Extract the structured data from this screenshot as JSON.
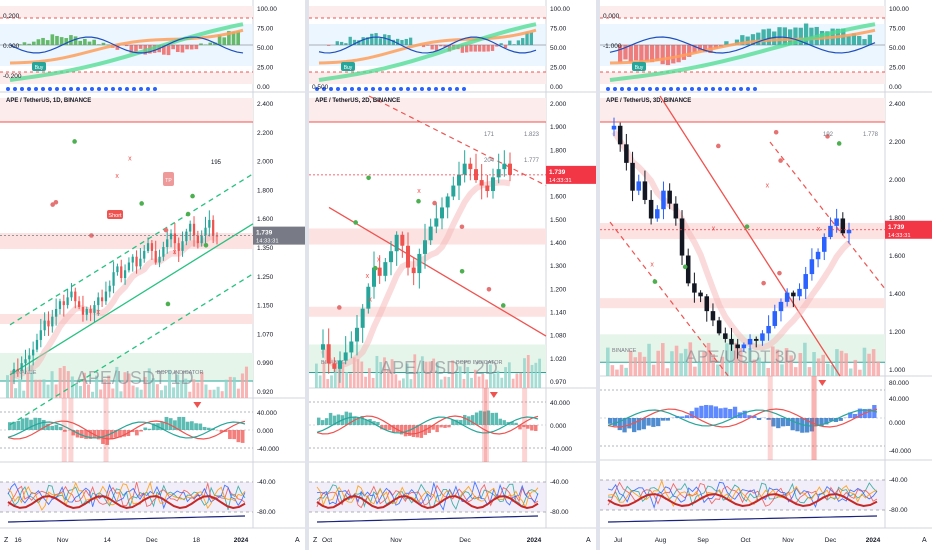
{
  "panels": [
    {
      "symbol_label": "APE / TetherUS, 1D, BINANCE",
      "watermark": "APE/USDT 1D",
      "source_tag": "BINANCE",
      "indicator_tag": "BCPD INDICATOR",
      "last_price": "1.739",
      "countdown": "14:33:31",
      "price_ticks": [
        "2.400",
        "2.200",
        "2.000",
        "1.800",
        "1.600",
        "1.350",
        "1.250",
        "1.150",
        "1.070",
        "0.990",
        "0.920"
      ],
      "osc1_ticks": [
        "0.200",
        "0.000",
        "-0.200"
      ],
      "osc1_right_ticks": [
        "100.00",
        "75.00",
        "50.00",
        "25.00",
        "0.00"
      ],
      "osc2_ticks": [
        "40.000",
        "0.000",
        "-40.000"
      ],
      "osc3_ticks": [
        "-40.00",
        "-80.00"
      ],
      "time_labels": [
        "16",
        "Nov",
        "14",
        "Dec",
        "18",
        "2024"
      ],
      "corner_labels": {
        "left": "Z",
        "right": "A"
      },
      "signal_labels": [
        "Short",
        "TP",
        "Buy"
      ],
      "level_labels": [
        "195",
        "1.800"
      ],
      "price_line_style": "gray"
    },
    {
      "symbol_label": "APE / TetherUS, 2D, BINANCE",
      "watermark": "APE/USDT 2D",
      "source_tag": "BINANCE",
      "indicator_tag": "BCPD INDICATOR",
      "last_price": "1.739",
      "countdown": "14:33:31",
      "price_ticks": [
        "2.000",
        "1.900",
        "1.800",
        "1.700",
        "1.600",
        "1.500",
        "1.400",
        "1.300",
        "1.200",
        "1.140",
        "1.080",
        "1.020",
        "0.970"
      ],
      "osc1_ticks": [
        "0.500"
      ],
      "osc1_right_ticks": [
        "100.00",
        "75.00",
        "50.00",
        "25.00",
        "0.00"
      ],
      "osc2_ticks": [
        "40.000",
        "0.000",
        "-40.000"
      ],
      "osc3_ticks": [
        "-40.00",
        "-80.00"
      ],
      "time_labels": [
        "Oct",
        "Nov",
        "Dec",
        "2024"
      ],
      "corner_labels": {
        "left": "Z",
        "right": "A"
      },
      "signal_labels": [
        "Buy"
      ],
      "level_labels": [
        "171",
        "1.823",
        "204",
        "1.777"
      ],
      "price_line_style": "red"
    },
    {
      "symbol_label": "APE / TetherUS, 3D, BINANCE",
      "watermark": "APE/USDT 3D",
      "source_tag": "BINANCE",
      "indicator_tag": "",
      "last_price": "1.739",
      "countdown": "14:33:31",
      "price_ticks": [
        "2.400",
        "2.200",
        "2.000",
        "1.800",
        "1.600",
        "1.400",
        "1.200",
        "1.000"
      ],
      "osc1_ticks": [
        "0.000",
        "-1.000"
      ],
      "osc1_right_ticks": [
        "100.00",
        "75.00",
        "50.00",
        "25.00",
        "0.00"
      ],
      "osc2_ticks": [
        "80.000",
        "40.000",
        "0.000",
        "-40.000"
      ],
      "osc3_ticks": [
        "-40.00",
        "-80.00"
      ],
      "time_labels": [
        "Jul",
        "Aug",
        "Sep",
        "Oct",
        "Nov",
        "Dec",
        "2024"
      ],
      "corner_labels": {
        "left": "",
        "right": "A"
      },
      "signal_labels": [
        "Buy"
      ],
      "level_labels": [
        "192",
        "1.778"
      ],
      "price_line_style": "red"
    }
  ],
  "chart_data": [
    {
      "type": "candlestick",
      "title": "APE / TetherUS, 1D, BINANCE",
      "interval": "1D",
      "ylim": [
        0.9,
        2.45
      ],
      "close": [
        1.05,
        1.04,
        1.08,
        1.1,
        1.12,
        1.15,
        1.2,
        1.25,
        1.3,
        1.27,
        1.32,
        1.36,
        1.4,
        1.38,
        1.42,
        1.45,
        1.4,
        1.37,
        1.33,
        1.36,
        1.34,
        1.38,
        1.42,
        1.4,
        1.45,
        1.48,
        1.55,
        1.58,
        1.52,
        1.56,
        1.6,
        1.63,
        1.58,
        1.62,
        1.66,
        1.7,
        1.66,
        1.6,
        1.63,
        1.68,
        1.72,
        1.75,
        1.7,
        1.66,
        1.71,
        1.76,
        1.8,
        1.74,
        1.7,
        1.74,
        1.78,
        1.82,
        1.74,
        1.739
      ],
      "x_labels": [
        "16",
        "Nov",
        "14",
        "Dec",
        "18",
        "2024"
      ]
    },
    {
      "type": "candlestick",
      "title": "APE / TetherUS, 2D, BINANCE",
      "interval": "2D",
      "ylim": [
        0.96,
        2.02
      ],
      "close": [
        1.12,
        1.05,
        1.03,
        1.06,
        1.09,
        1.13,
        1.18,
        1.25,
        1.33,
        1.4,
        1.37,
        1.42,
        1.46,
        1.52,
        1.48,
        1.4,
        1.38,
        1.45,
        1.5,
        1.55,
        1.58,
        1.62,
        1.66,
        1.7,
        1.74,
        1.78,
        1.76,
        1.72,
        1.7,
        1.68,
        1.73,
        1.76,
        1.78,
        1.739
      ],
      "x_labels": [
        "Oct",
        "Nov",
        "Dec",
        "2024"
      ]
    },
    {
      "type": "candlestick",
      "title": "APE / TetherUS, 3D, BINANCE",
      "interval": "3D",
      "ylim": [
        0.95,
        2.45
      ],
      "close": [
        2.3,
        2.2,
        2.1,
        1.95,
        2.0,
        1.9,
        1.8,
        1.85,
        1.95,
        1.88,
        1.8,
        1.6,
        1.45,
        1.4,
        1.38,
        1.3,
        1.25,
        1.18,
        1.15,
        1.12,
        1.1,
        1.12,
        1.15,
        1.14,
        1.18,
        1.22,
        1.3,
        1.35,
        1.4,
        1.38,
        1.42,
        1.5,
        1.58,
        1.62,
        1.7,
        1.76,
        1.8,
        1.72,
        1.739
      ],
      "x_labels": [
        "Jul",
        "Aug",
        "Sep",
        "Oct",
        "Nov",
        "Dec",
        "2024"
      ]
    }
  ]
}
